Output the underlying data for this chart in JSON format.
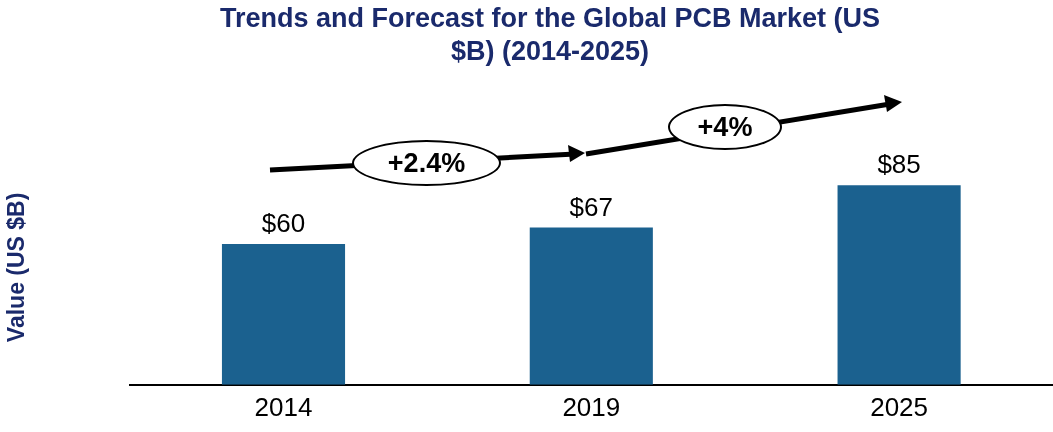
{
  "chart_data": {
    "type": "bar",
    "title": "Trends and Forecast for the Global PCB Market (US $B) (2014-2025)",
    "ylabel": "Value (US $B)",
    "categories": [
      "2014",
      "2019",
      "2025"
    ],
    "values": [
      60,
      67,
      85
    ],
    "value_labels": [
      "$60",
      "$67",
      "$85"
    ],
    "color": "#1b618f",
    "tick_labels": "x",
    "grid": false,
    "legend": false,
    "annotations": [
      "+2.4%",
      "+4%"
    ]
  }
}
